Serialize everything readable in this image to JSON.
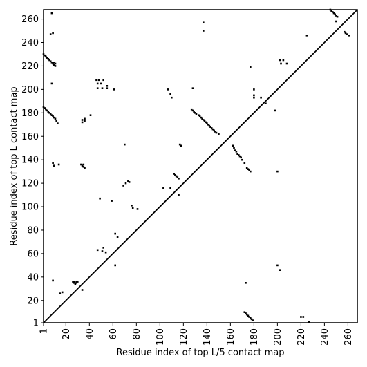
{
  "chart_data": {
    "type": "scatter",
    "title": "",
    "xlabel": "Residue index of top L/5 contact map",
    "ylabel": "Residue index of top L contact map",
    "xlim": [
      1,
      268
    ],
    "ylim": [
      1,
      268
    ],
    "xticks": [
      1,
      20,
      40,
      60,
      80,
      100,
      120,
      140,
      160,
      180,
      200,
      220,
      240,
      260
    ],
    "yticks": [
      1,
      20,
      40,
      60,
      80,
      100,
      120,
      140,
      160,
      180,
      200,
      220,
      240,
      260
    ],
    "grid": false,
    "marker_color": "#000000",
    "diagonal": true,
    "series": [
      {
        "values": [
          [
            1,
            230
          ],
          [
            2,
            229
          ],
          [
            3,
            228
          ],
          [
            4,
            227
          ],
          [
            5,
            226
          ],
          [
            6,
            225
          ],
          [
            7,
            224
          ],
          [
            8,
            223
          ],
          [
            9,
            222
          ],
          [
            10,
            221
          ],
          [
            11,
            220
          ],
          [
            10,
            223
          ],
          [
            11,
            222
          ],
          [
            1,
            185
          ],
          [
            2,
            184
          ],
          [
            3,
            183
          ],
          [
            4,
            182
          ],
          [
            5,
            181
          ],
          [
            6,
            180
          ],
          [
            7,
            179
          ],
          [
            8,
            178
          ],
          [
            9,
            177
          ],
          [
            10,
            176
          ],
          [
            11,
            175
          ],
          [
            12,
            173
          ],
          [
            13,
            171
          ],
          [
            8,
            205
          ],
          [
            7,
            247
          ],
          [
            9,
            248
          ],
          [
            8,
            265
          ],
          [
            9,
            137
          ],
          [
            10,
            135
          ],
          [
            14,
            136
          ],
          [
            9,
            37
          ],
          [
            26,
            36
          ],
          [
            27,
            35
          ],
          [
            28,
            34
          ],
          [
            29,
            35
          ],
          [
            30,
            36
          ],
          [
            27,
            36
          ],
          [
            29,
            36
          ],
          [
            15,
            26
          ],
          [
            17,
            27
          ],
          [
            34,
            29
          ],
          [
            34,
            172
          ],
          [
            34,
            174
          ],
          [
            36,
            175
          ],
          [
            36,
            173
          ],
          [
            33,
            136
          ],
          [
            34,
            135
          ],
          [
            35,
            134
          ],
          [
            36,
            133
          ],
          [
            35,
            136
          ],
          [
            41,
            178
          ],
          [
            46,
            208
          ],
          [
            48,
            208
          ],
          [
            52,
            208
          ],
          [
            47,
            205
          ],
          [
            50,
            205
          ],
          [
            55,
            203
          ],
          [
            47,
            201
          ],
          [
            51,
            201
          ],
          [
            55,
            201
          ],
          [
            61,
            200
          ],
          [
            47,
            63
          ],
          [
            51,
            62
          ],
          [
            52,
            65
          ],
          [
            54,
            61
          ],
          [
            49,
            107
          ],
          [
            59,
            105
          ],
          [
            62,
            77
          ],
          [
            62,
            50
          ],
          [
            64,
            74
          ],
          [
            70,
            153
          ],
          [
            69,
            118
          ],
          [
            71,
            120
          ],
          [
            73,
            122
          ],
          [
            74,
            121
          ],
          [
            76,
            101
          ],
          [
            77,
            99
          ],
          [
            81,
            98
          ],
          [
            103,
            116
          ],
          [
            109,
            116
          ],
          [
            107,
            200
          ],
          [
            109,
            196
          ],
          [
            110,
            193
          ],
          [
            112,
            128
          ],
          [
            113,
            127
          ],
          [
            114,
            126
          ],
          [
            115,
            125
          ],
          [
            116,
            124
          ],
          [
            117,
            153
          ],
          [
            118,
            152
          ],
          [
            116,
            110
          ],
          [
            127,
            183
          ],
          [
            128,
            182
          ],
          [
            129,
            181
          ],
          [
            130,
            180
          ],
          [
            131,
            179
          ],
          [
            133,
            178
          ],
          [
            134,
            177
          ],
          [
            135,
            176
          ],
          [
            136,
            175
          ],
          [
            137,
            174
          ],
          [
            138,
            173
          ],
          [
            139,
            172
          ],
          [
            140,
            171
          ],
          [
            141,
            170
          ],
          [
            142,
            169
          ],
          [
            143,
            168
          ],
          [
            144,
            167
          ],
          [
            145,
            166
          ],
          [
            146,
            165
          ],
          [
            147,
            164
          ],
          [
            148,
            163
          ],
          [
            150,
            162
          ],
          [
            128,
            201
          ],
          [
            137,
            257
          ],
          [
            137,
            250
          ],
          [
            162,
            152
          ],
          [
            163,
            150
          ],
          [
            164,
            148
          ],
          [
            165,
            147
          ],
          [
            166,
            145
          ],
          [
            167,
            144
          ],
          [
            168,
            143
          ],
          [
            169,
            142
          ],
          [
            170,
            140
          ],
          [
            172,
            137
          ],
          [
            174,
            133
          ],
          [
            175,
            132
          ],
          [
            176,
            131
          ],
          [
            177,
            130
          ],
          [
            173,
            35
          ],
          [
            172,
            10
          ],
          [
            173,
            9
          ],
          [
            174,
            8
          ],
          [
            175,
            7
          ],
          [
            176,
            6
          ],
          [
            177,
            5
          ],
          [
            178,
            4
          ],
          [
            179,
            3
          ],
          [
            177,
            219
          ],
          [
            180,
            200
          ],
          [
            180,
            195
          ],
          [
            186,
            193
          ],
          [
            180,
            193
          ],
          [
            190,
            188
          ],
          [
            198,
            182
          ],
          [
            200,
            50
          ],
          [
            202,
            46
          ],
          [
            200,
            130
          ],
          [
            202,
            225
          ],
          [
            205,
            225
          ],
          [
            203,
            222
          ],
          [
            208,
            222
          ],
          [
            220,
            6
          ],
          [
            222,
            6
          ],
          [
            227,
            2
          ],
          [
            225,
            246
          ],
          [
            245,
            268
          ],
          [
            246,
            267
          ],
          [
            247,
            266
          ],
          [
            248,
            265
          ],
          [
            249,
            264
          ],
          [
            250,
            263
          ],
          [
            251,
            262
          ],
          [
            250,
            258
          ],
          [
            257,
            249
          ],
          [
            258,
            248
          ],
          [
            259,
            247
          ],
          [
            261,
            246
          ]
        ]
      }
    ]
  }
}
